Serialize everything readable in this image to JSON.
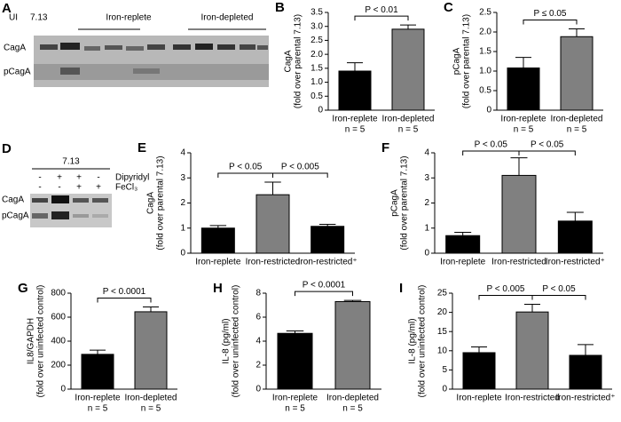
{
  "blot_a": {
    "panel": "A",
    "control": "UI",
    "strain": "7.13",
    "groups": [
      "Iron-replete",
      "Iron-depleted"
    ],
    "rows": [
      "CagA",
      "pCagA"
    ]
  },
  "blot_d": {
    "panel": "D",
    "strain": "7.13",
    "treatments": [
      {
        "name": "Dipyridyl",
        "signs": [
          "-",
          "+",
          "+",
          "-"
        ]
      },
      {
        "name": "FeCl₃",
        "signs": [
          "-",
          "-",
          "+",
          "+"
        ]
      }
    ],
    "rows": [
      "CagA",
      "pCagA"
    ]
  },
  "chart_data": [
    {
      "type": "bar",
      "panel": "B",
      "ylabel": "CagA",
      "ylabel_note": "(fold over parental 7.13)",
      "categories": [
        "Iron-replete",
        "Iron-depleted"
      ],
      "category_notes": [
        "n = 5",
        "n = 5"
      ],
      "values": [
        1.4,
        2.9
      ],
      "errors": [
        0.3,
        0.15
      ],
      "colors": [
        "#000000",
        "#808080"
      ],
      "ylim": [
        0,
        3.5
      ],
      "yticks": [
        0,
        0.5,
        {
          "value": 1,
          "label": "1.0"
        },
        1.5,
        {
          "value": 2,
          "label": "2.0"
        },
        2.5,
        {
          "value": 3,
          "label": "3.0"
        },
        3.5
      ],
      "annotations": [
        "P < 0.01"
      ]
    },
    {
      "type": "bar",
      "panel": "C",
      "ylabel": "pCagA",
      "ylabel_note": "(fold over parental 7.13)",
      "categories": [
        "Iron-replete",
        "Iron-depleted"
      ],
      "category_notes": [
        "n = 5",
        "n = 5"
      ],
      "values": [
        1.08,
        1.88
      ],
      "errors": [
        0.27,
        0.2
      ],
      "colors": [
        "#000000",
        "#808080"
      ],
      "ylim": [
        0,
        2.5
      ],
      "yticks": [
        0,
        0.5,
        {
          "value": 1,
          "label": "1.0"
        },
        1.5,
        {
          "value": 2,
          "label": "2.0"
        },
        2.5
      ],
      "annotations": [
        "P ≤ 0.05"
      ]
    },
    {
      "type": "bar",
      "panel": "E",
      "ylabel": "CagA",
      "ylabel_note": "(fold over parental 7.13)",
      "categories": [
        "Iron-replete",
        "Iron-restricted",
        "Iron-restricted⁺"
      ],
      "values": [
        1.0,
        2.33,
        1.07
      ],
      "errors": [
        0.1,
        0.5,
        0.08
      ],
      "colors": [
        "#000000",
        "#808080",
        "#000000"
      ],
      "ylim": [
        0,
        4
      ],
      "yticks": [
        0,
        1,
        2,
        3,
        4
      ],
      "annotations": [
        "P < 0.05",
        "P < 0.005"
      ]
    },
    {
      "type": "bar",
      "panel": "F",
      "ylabel": "pCagA",
      "ylabel_note": "(fold over parental 7.13)",
      "categories": [
        "Iron-replete",
        "Iron-restricted",
        "Iron-restricted⁺"
      ],
      "values": [
        0.7,
        3.1,
        1.28
      ],
      "errors": [
        0.13,
        0.7,
        0.35
      ],
      "colors": [
        "#000000",
        "#808080",
        "#000000"
      ],
      "ylim": [
        0,
        4
      ],
      "yticks": [
        0,
        1,
        2,
        3,
        4
      ],
      "annotations": [
        "P < 0.05",
        "P < 0.05"
      ]
    },
    {
      "type": "bar",
      "panel": "G",
      "ylabel": "IL8/GAPDH",
      "ylabel_note": "(fold over uninfected control)",
      "categories": [
        "Iron-replete",
        "Iron-depleted"
      ],
      "category_notes": [
        "n = 5",
        "n = 5"
      ],
      "values": [
        290,
        645
      ],
      "errors": [
        35,
        40
      ],
      "colors": [
        "#000000",
        "#808080"
      ],
      "ylim": [
        0,
        800
      ],
      "yticks": [
        0,
        200,
        400,
        600,
        800
      ],
      "annotations": [
        "P < 0.0001"
      ]
    },
    {
      "type": "bar",
      "panel": "H",
      "ylabel": "IL-8 (pg/ml)",
      "ylabel_note": "(fold over uninfected control)",
      "categories": [
        "Iron-replete",
        "Iron-depleted"
      ],
      "category_notes": [
        "n = 5",
        "n = 5"
      ],
      "values": [
        4.65,
        7.3
      ],
      "errors": [
        0.2,
        0.1
      ],
      "colors": [
        "#000000",
        "#808080"
      ],
      "ylim": [
        0,
        8
      ],
      "yticks": [
        0,
        2,
        4,
        6,
        8
      ],
      "annotations": [
        "P < 0.0001"
      ]
    },
    {
      "type": "bar",
      "panel": "I",
      "ylabel": "IL-8 (pg/ml)",
      "ylabel_note": "(fold over uninfected control)",
      "categories": [
        "Iron-replete",
        "Iron-restricted",
        "Iron-restricted⁺"
      ],
      "values": [
        9.5,
        20.1,
        8.8
      ],
      "errors": [
        1.5,
        2,
        2.8
      ],
      "colors": [
        "#000000",
        "#808080",
        "#000000"
      ],
      "ylim": [
        0,
        25
      ],
      "yticks": [
        0,
        5,
        10,
        15,
        20,
        25
      ],
      "annotations": [
        "P < 0.005",
        "P < 0.05"
      ]
    }
  ]
}
